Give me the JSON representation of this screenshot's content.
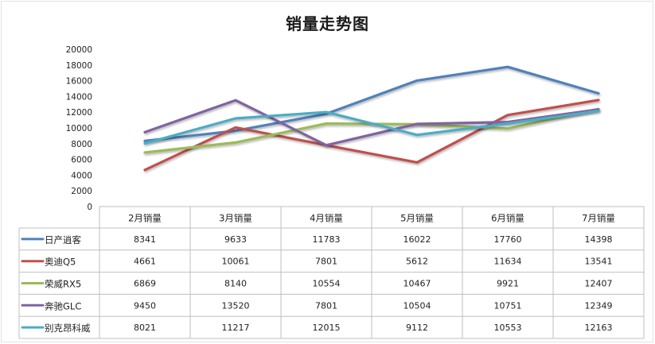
{
  "chart_data": {
    "type": "line",
    "title": "销量走势图",
    "categories": [
      "2月销量",
      "3月销量",
      "4月销量",
      "5月销量",
      "6月销量",
      "7月销量"
    ],
    "ylim": [
      0,
      20000
    ],
    "yticks": [
      0,
      2000,
      4000,
      6000,
      8000,
      10000,
      12000,
      14000,
      16000,
      18000,
      20000
    ],
    "grid": false,
    "legend": "data-table-left",
    "series": [
      {
        "name": "日产逍客",
        "color": "#4F81BD",
        "values": [
          8341,
          9633,
          11783,
          16022,
          17760,
          14398
        ]
      },
      {
        "name": "奥迪Q5",
        "color": "#C0504D",
        "values": [
          4661,
          10061,
          7801,
          5612,
          11634,
          13541
        ]
      },
      {
        "name": "荣威RX5",
        "color": "#9BBB59",
        "values": [
          6869,
          8140,
          10554,
          10467,
          9921,
          12407
        ]
      },
      {
        "name": "奔驰GLC",
        "color": "#8064A2",
        "values": [
          9450,
          13520,
          7801,
          10504,
          10751,
          12349
        ]
      },
      {
        "name": "别克昂科威",
        "color": "#4BACC6",
        "values": [
          8021,
          11217,
          12015,
          9112,
          10553,
          12163
        ]
      }
    ]
  }
}
